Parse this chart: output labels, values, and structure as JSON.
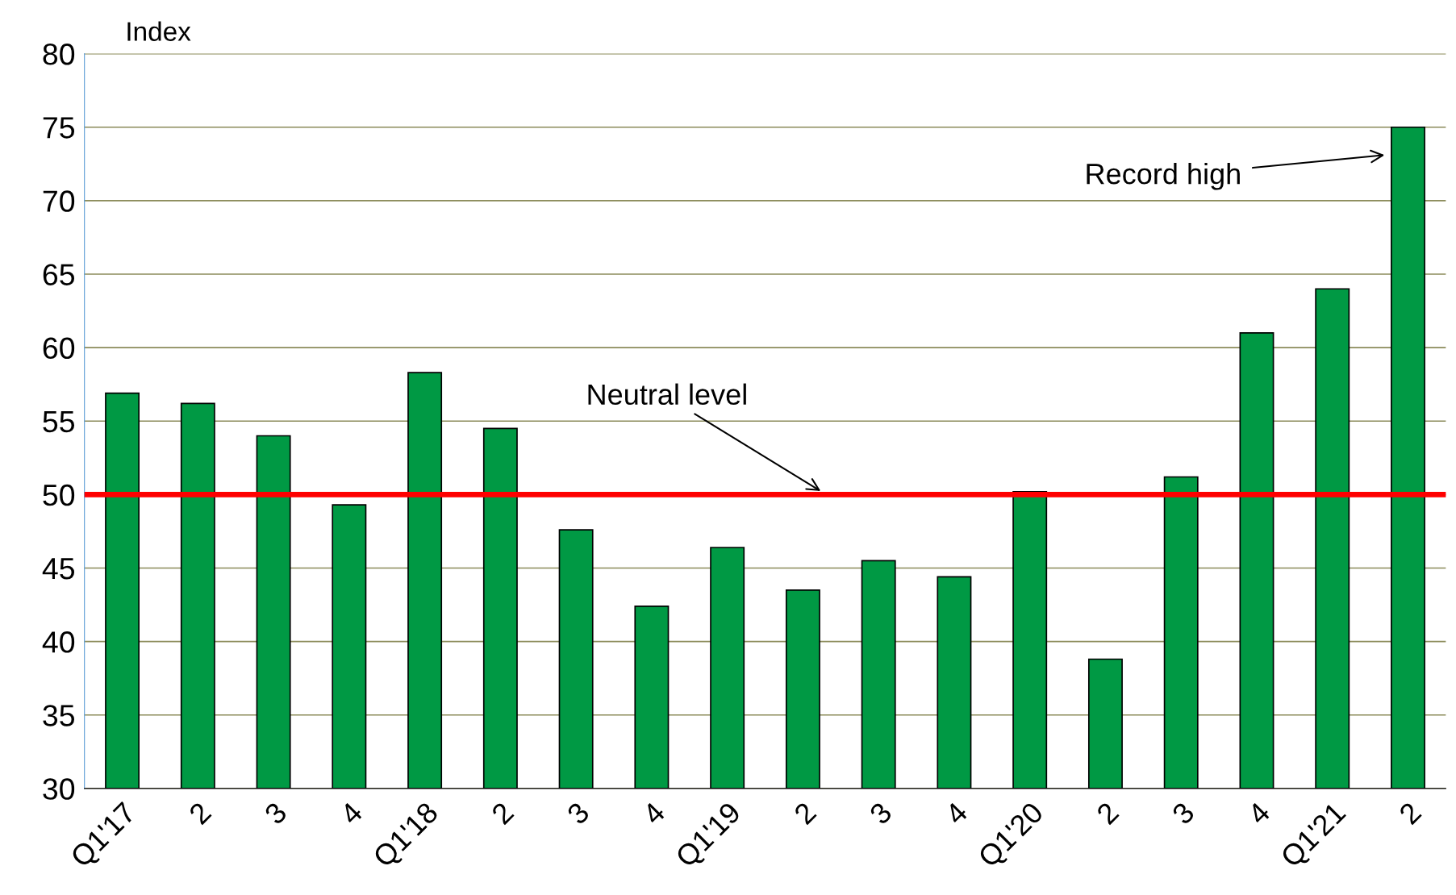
{
  "chart_data": {
    "type": "bar",
    "ylabel": "Index",
    "categories": [
      "Q1'17",
      "2",
      "3",
      "4",
      "Q1'18",
      "2",
      "3",
      "4",
      "Q1'19",
      "2",
      "3",
      "4",
      "Q1'20",
      "2",
      "3",
      "4",
      "Q1'21",
      "2"
    ],
    "values": [
      56.9,
      56.2,
      54.0,
      49.3,
      58.3,
      54.5,
      47.6,
      42.4,
      46.4,
      43.5,
      45.5,
      44.4,
      50.2,
      38.8,
      51.2,
      61.0,
      64.0,
      75.0
    ],
    "color": "#009944",
    "ylim": [
      30,
      80
    ],
    "yticks": [
      30,
      35,
      40,
      45,
      50,
      55,
      60,
      65,
      70,
      75,
      80
    ],
    "grid": "y",
    "ref_lines": [
      {
        "axis": "y",
        "value": 50,
        "label": "Neutral level",
        "color": "#ff0000"
      }
    ],
    "annotations": [
      "Record high"
    ]
  }
}
